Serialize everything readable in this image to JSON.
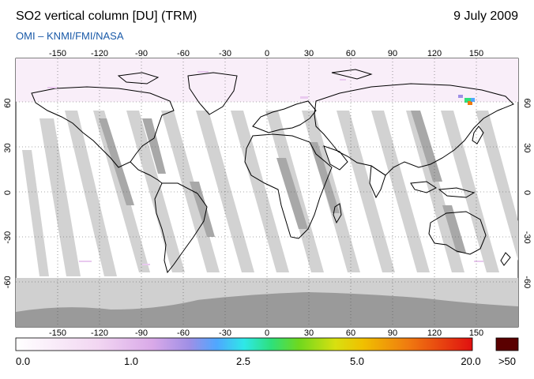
{
  "header": {
    "title": "SO2 vertical column [DU] (TRM)",
    "date": "9 July 2009",
    "source": "OMI  –  KNMI/FMI/NASA"
  },
  "map": {
    "projection": "equirectangular",
    "lon_ticks": [
      "-150",
      "-120",
      "-90",
      "-60",
      "-30",
      "0",
      "30",
      "60",
      "90",
      "120",
      "150"
    ],
    "lat_ticks": [
      "60",
      "30",
      "0",
      "-30",
      "-60"
    ],
    "colors": {
      "ocean": "#ffffff",
      "missing_swath": "#d4d4d4",
      "polar_dark": "#9a9a9a",
      "coast": "#000000"
    }
  },
  "colorbar": {
    "labels": [
      "0.0",
      "1.0",
      "2.5",
      "5.0",
      "20.0"
    ],
    "overflow_label": ">50",
    "overflow_color": "#5a0000"
  }
}
